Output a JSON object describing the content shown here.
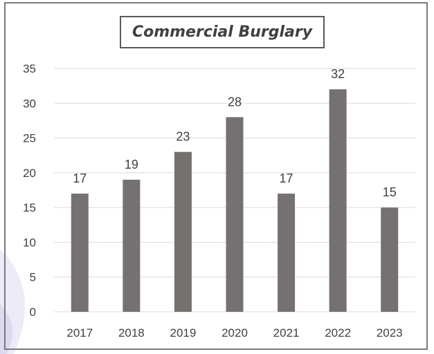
{
  "chart_data": {
    "type": "bar",
    "title": "Commercial Burglary",
    "categories": [
      "2017",
      "2018",
      "2019",
      "2020",
      "2021",
      "2022",
      "2023"
    ],
    "values": [
      17,
      19,
      23,
      28,
      17,
      32,
      15
    ],
    "data_labels": [
      "17",
      "19",
      "23",
      "28",
      "17",
      "32",
      "15"
    ],
    "xlabel": "",
    "ylabel": "",
    "ylim": [
      0,
      35
    ],
    "yticks": [
      "0",
      "5",
      "10",
      "15",
      "20",
      "25",
      "30",
      "35"
    ],
    "grid": true,
    "legend": "none",
    "colors": {
      "bar": "#767171",
      "grid": "#d9d9d9",
      "text": "#404040",
      "border": "#7a7a7a"
    }
  }
}
